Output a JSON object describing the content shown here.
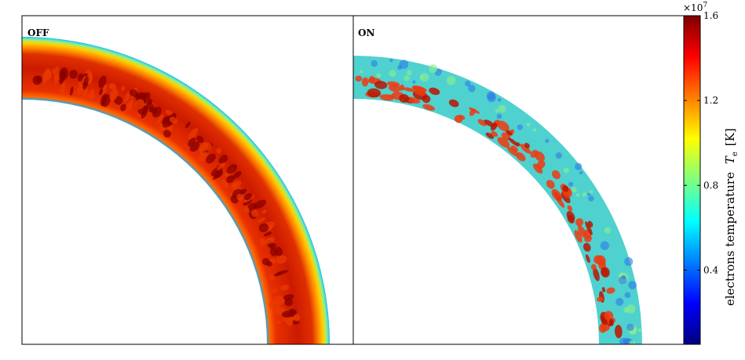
{
  "panels": [
    {
      "label": "OFF"
    },
    {
      "label": "ON"
    }
  ],
  "colorbar": {
    "multiplier": "×10",
    "exponent": "7",
    "ticks": [
      {
        "value": 0.4,
        "label": "0.4"
      },
      {
        "value": 0.8,
        "label": "0.8"
      },
      {
        "value": 1.2,
        "label": "1.2"
      },
      {
        "value": 1.6,
        "label": "1.6"
      }
    ],
    "range": [
      0.05,
      1.6
    ],
    "title_text": "electrons temperature",
    "title_symbol": "T",
    "title_subscript": "e",
    "title_unit": "[K]"
  },
  "colors": {
    "jet": [
      "#00007f",
      "#0000ff",
      "#007fff",
      "#00ffff",
      "#7fff7f",
      "#ffff00",
      "#ff7f00",
      "#ff0000",
      "#7f0000"
    ],
    "off_shell": [
      "#1e9be0",
      "#33d6f0",
      "#c8f060",
      "#ffd000",
      "#ff8a00",
      "#f03a00",
      "#c81800",
      "#9a0000"
    ],
    "on_shell": "#4fd1cf",
    "on_plumes": "#ee3a10"
  }
}
